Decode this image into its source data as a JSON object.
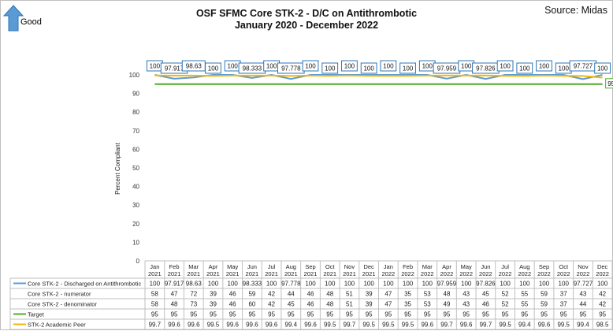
{
  "header": {
    "good_label": "Good",
    "title_line1": "OSF SFMC Core STK-2 - D/C on Antithrombotic",
    "title_line2": "January 2020 - December 2022",
    "source": "Source: Midas"
  },
  "chart_data": {
    "type": "line",
    "title": "OSF SFMC Core STK-2 - D/C on Antithrombotic",
    "subtitle": "January 2020 - December 2022",
    "ylabel": "Percent Compliant",
    "ylim": [
      0,
      100
    ],
    "yticks": [
      "0",
      "10",
      "20",
      "30",
      "40",
      "50",
      "60",
      "70",
      "80",
      "90",
      "100"
    ],
    "categories": [
      [
        "Jan",
        "2021"
      ],
      [
        "Feb",
        "2021"
      ],
      [
        "Mar",
        "2021"
      ],
      [
        "Apr",
        "2021"
      ],
      [
        "May",
        "2021"
      ],
      [
        "Jun",
        "2021"
      ],
      [
        "Jul",
        "2021"
      ],
      [
        "Aug",
        "2021"
      ],
      [
        "Sep",
        "2021"
      ],
      [
        "Oct",
        "2021"
      ],
      [
        "Nov",
        "2021"
      ],
      [
        "Dec",
        "2021"
      ],
      [
        "Jan",
        "2022"
      ],
      [
        "Feb",
        "2022"
      ],
      [
        "Mar",
        "2022"
      ],
      [
        "Apr",
        "2022"
      ],
      [
        "May",
        "2022"
      ],
      [
        "Jun",
        "2022"
      ],
      [
        "Jul",
        "2022"
      ],
      [
        "Aug",
        "2022"
      ],
      [
        "Sep",
        "2022"
      ],
      [
        "Oct",
        "2022"
      ],
      [
        "Nov",
        "2022"
      ],
      [
        "Dec",
        "2022"
      ]
    ],
    "series": [
      {
        "name": "Core STK-2 - Discharged on Antithrombotic",
        "color": "#5b9bd5",
        "plotted": true,
        "labeled": true,
        "values": [
          100,
          97.917,
          98.63,
          100,
          100,
          98.333,
          100,
          97.778,
          100,
          100,
          100,
          100,
          100,
          100,
          100,
          97.959,
          100,
          97.826,
          100,
          100,
          100,
          100,
          97.727,
          100
        ],
        "display": [
          "100",
          "97.917",
          "98.63",
          "100",
          "100",
          "98.333",
          "100",
          "97.778",
          "100",
          "100",
          "100",
          "100",
          "100",
          "100",
          "100",
          "97.959",
          "100",
          "97.826",
          "100",
          "100",
          "100",
          "100",
          "97.727",
          "100"
        ]
      },
      {
        "name": "Core STK-2 - numerator",
        "color": null,
        "plotted": false,
        "values": [
          58,
          47,
          72,
          39,
          46,
          59,
          42,
          44,
          46,
          48,
          51,
          39,
          47,
          35,
          53,
          48,
          43,
          45,
          52,
          55,
          59,
          37,
          43,
          42
        ]
      },
      {
        "name": "Core STK-2 - denominator",
        "color": null,
        "plotted": false,
        "values": [
          58,
          48,
          73,
          39,
          46,
          60,
          42,
          45,
          46,
          48,
          51,
          39,
          47,
          35,
          53,
          49,
          43,
          46,
          52,
          55,
          59,
          37,
          44,
          42
        ]
      },
      {
        "name": "Target",
        "color": "#4eac28",
        "plotted": true,
        "values": [
          95,
          95,
          95,
          95,
          95,
          95,
          95,
          95,
          95,
          95,
          95,
          95,
          95,
          95,
          95,
          95,
          95,
          95,
          95,
          95,
          95,
          95,
          95,
          95
        ],
        "end_label": "95"
      },
      {
        "name": "STK-2 Academic Peer",
        "color": "#f5b700",
        "plotted": true,
        "values": [
          99.7,
          99.6,
          99.6,
          99.5,
          99.6,
          99.6,
          99.6,
          99.4,
          99.6,
          99.5,
          99.7,
          99.5,
          99.5,
          99.5,
          99.6,
          99.7,
          99.6,
          99.7,
          99.5,
          99.4,
          99.6,
          99.5,
          99.4,
          98.5
        ]
      }
    ]
  }
}
